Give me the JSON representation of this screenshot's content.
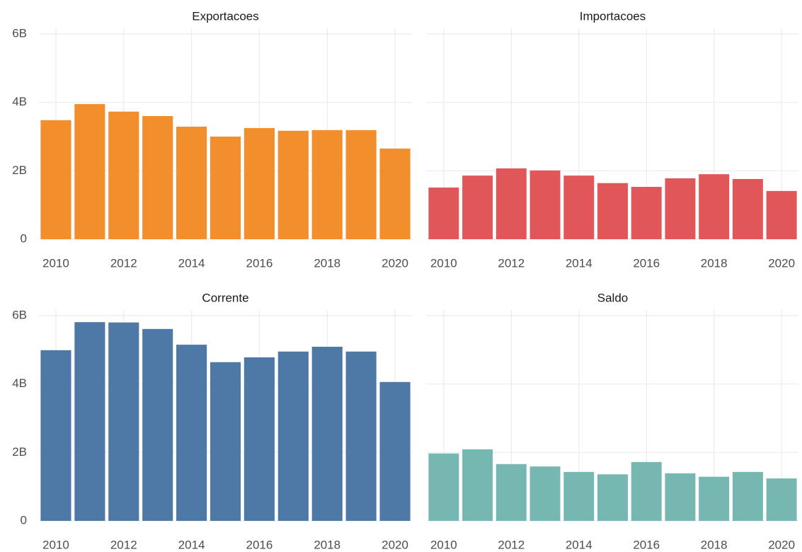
{
  "chart_data": [
    {
      "type": "bar",
      "title": "Exportacoes",
      "color": "#f28e2b",
      "x": [
        2010,
        2011,
        2012,
        2013,
        2014,
        2015,
        2016,
        2017,
        2018,
        2019,
        2020
      ],
      "values": [
        3480000000,
        3950000000,
        3730000000,
        3600000000,
        3290000000,
        3000000000,
        3250000000,
        3170000000,
        3190000000,
        3190000000,
        2650000000
      ],
      "xlim": [
        2009.5,
        2020.5
      ],
      "xticks": [
        2010,
        2012,
        2014,
        2016,
        2018,
        2020
      ],
      "ylim": [
        0,
        6000000000
      ],
      "yticks": [
        0,
        {
          "value": 2000000000,
          "label": "2B"
        },
        {
          "value": 4000000000,
          "label": "4B"
        },
        {
          "value": 6000000000,
          "label": "6B"
        }
      ],
      "grid": true
    },
    {
      "type": "bar",
      "title": "Importacoes",
      "color": "#e15759",
      "x": [
        2010,
        2011,
        2012,
        2013,
        2014,
        2015,
        2016,
        2017,
        2018,
        2019,
        2020
      ],
      "values": [
        1510000000,
        1860000000,
        2070000000,
        2010000000,
        1860000000,
        1640000000,
        1530000000,
        1780000000,
        1900000000,
        1760000000,
        1410000000
      ],
      "xlim": [
        2009.5,
        2020.5
      ],
      "xticks": [
        2010,
        2012,
        2014,
        2016,
        2018,
        2020
      ],
      "ylim": [
        0,
        6000000000
      ],
      "yticks": [
        0,
        2000000000,
        4000000000,
        6000000000
      ],
      "grid": true
    },
    {
      "type": "bar",
      "title": "Corrente",
      "color": "#4e79a7",
      "x": [
        2010,
        2011,
        2012,
        2013,
        2014,
        2015,
        2016,
        2017,
        2018,
        2019,
        2020
      ],
      "values": [
        4990000000,
        5810000000,
        5800000000,
        5610000000,
        5150000000,
        4640000000,
        4780000000,
        4950000000,
        5090000000,
        4950000000,
        4060000000
      ],
      "xlim": [
        2009.5,
        2020.5
      ],
      "xticks": [
        2010,
        2012,
        2014,
        2016,
        2018,
        2020
      ],
      "ylim": [
        0,
        6000000000
      ],
      "yticks": [
        0,
        {
          "value": 2000000000,
          "label": "2B"
        },
        {
          "value": 4000000000,
          "label": "4B"
        },
        {
          "value": 6000000000,
          "label": "6B"
        }
      ],
      "grid": true
    },
    {
      "type": "bar",
      "title": "Saldo",
      "color": "#76b7b2",
      "x": [
        2010,
        2011,
        2012,
        2013,
        2014,
        2015,
        2016,
        2017,
        2018,
        2019,
        2020
      ],
      "values": [
        1970000000,
        2090000000,
        1660000000,
        1590000000,
        1430000000,
        1360000000,
        1720000000,
        1390000000,
        1290000000,
        1430000000,
        1240000000
      ],
      "xlim": [
        2009.5,
        2020.5
      ],
      "xticks": [
        2010,
        2012,
        2014,
        2016,
        2018,
        2020
      ],
      "ylim": [
        0,
        6000000000
      ],
      "yticks": [
        0,
        2000000000,
        4000000000,
        6000000000
      ],
      "grid": true
    }
  ]
}
